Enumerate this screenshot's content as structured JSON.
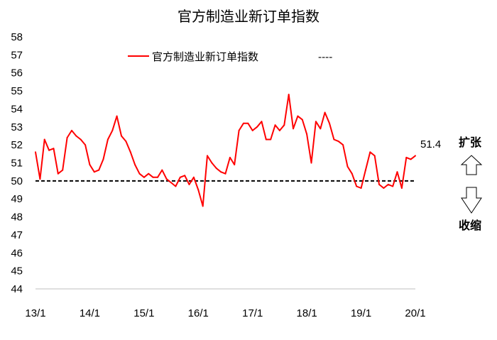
{
  "chart_data": {
    "type": "line",
    "title": "官方制造业新订单指数",
    "ylim": [
      44,
      58
    ],
    "yticks": [
      44,
      45,
      46,
      47,
      48,
      49,
      50,
      51,
      52,
      53,
      54,
      55,
      56,
      57,
      58
    ],
    "x_tick_labels": [
      "13/1",
      "14/1",
      "15/1",
      "16/1",
      "17/1",
      "18/1",
      "19/1",
      "20/1"
    ],
    "reference_line": {
      "value": 50,
      "style": "dashed",
      "color": "#000000"
    },
    "series": [
      {
        "name": "官方制造业新订单指数",
        "color": "#ff0000",
        "start": "2013-01",
        "values": [
          51.6,
          50.1,
          52.3,
          51.7,
          51.8,
          50.4,
          50.6,
          52.4,
          52.8,
          52.5,
          52.3,
          52.0,
          50.9,
          50.5,
          50.6,
          51.2,
          52.3,
          52.8,
          53.6,
          52.5,
          52.2,
          51.6,
          50.9,
          50.4,
          50.2,
          50.4,
          50.2,
          50.2,
          50.6,
          50.1,
          49.9,
          49.7,
          50.2,
          50.3,
          49.8,
          50.2,
          49.5,
          48.6,
          51.4,
          51.0,
          50.7,
          50.5,
          50.4,
          51.3,
          50.9,
          52.8,
          53.2,
          53.2,
          52.8,
          53.0,
          53.3,
          52.3,
          52.3,
          53.1,
          52.8,
          53.1,
          54.8,
          52.9,
          53.6,
          53.4,
          52.6,
          51.0,
          53.3,
          52.9,
          53.8,
          53.2,
          52.3,
          52.2,
          52.0,
          50.8,
          50.4,
          49.7,
          49.6,
          50.6,
          51.6,
          51.4,
          49.8,
          49.6,
          49.8,
          49.7,
          50.5,
          49.6,
          51.3,
          51.2,
          51.4
        ]
      }
    ],
    "last_value_label": "51.4",
    "legend": {
      "placement": "top-center",
      "entries": [
        "官方制造业新订单指数",
        "----"
      ]
    },
    "side_labels": {
      "expand": "扩张",
      "contract": "收缩"
    }
  }
}
